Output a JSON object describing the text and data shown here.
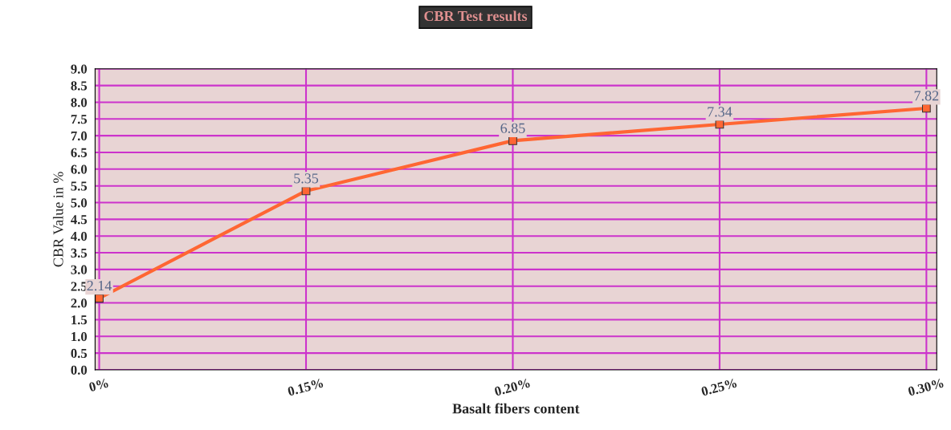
{
  "chart_data": {
    "type": "line",
    "title": "CBR Test results",
    "xlabel": "Basalt fibers content",
    "ylabel": "CBR Value in %",
    "categories": [
      "0%",
      "0.15%",
      "0.20%",
      "0.25%",
      "0.30%"
    ],
    "series": [
      {
        "color": "#ff6633",
        "values": [
          2.14,
          5.35,
          6.85,
          7.34,
          7.82
        ]
      }
    ],
    "ylim": [
      0,
      9
    ],
    "yticks": [
      {
        "value": 0,
        "label": "0.0"
      },
      {
        "value": 0.5,
        "label": "0.5"
      },
      {
        "value": 1,
        "label": "1.0"
      },
      {
        "value": 1.5,
        "label": "1.5"
      },
      {
        "value": 2,
        "label": "2.0"
      },
      {
        "value": 2.5,
        "label": "2.5"
      },
      {
        "value": 3,
        "label": "3.0"
      },
      {
        "value": 3.5,
        "label": "3.5"
      },
      {
        "value": 4,
        "label": "4.0"
      },
      {
        "value": 4.5,
        "label": "4.5"
      },
      {
        "value": 5,
        "label": "5.0"
      },
      {
        "value": 5.5,
        "label": "5.5"
      },
      {
        "value": 6,
        "label": "6.0"
      },
      {
        "value": 6.5,
        "label": "6.5"
      },
      {
        "value": 7,
        "label": "7.0"
      },
      {
        "value": 7.5,
        "label": "7.5"
      },
      {
        "value": 8,
        "label": "8.0"
      },
      {
        "value": 8.5,
        "label": "8.5"
      },
      {
        "value": 9,
        "label": "9.0"
      }
    ],
    "grid": true,
    "marker": "square",
    "line_style": "solid",
    "data_labels": true
  }
}
